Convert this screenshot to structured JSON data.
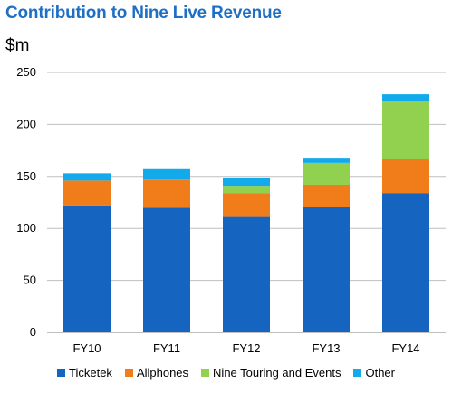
{
  "title": "Contribution to Nine Live Revenue",
  "unit_label": "$m",
  "chart_data": {
    "type": "bar",
    "stacked": true,
    "categories": [
      "FY10",
      "FY11",
      "FY12",
      "FY13",
      "FY14"
    ],
    "series": [
      {
        "name": "Ticketek",
        "color": "#1565C0",
        "values": [
          122,
          120,
          111,
          121,
          134
        ]
      },
      {
        "name": "Allphones",
        "color": "#F07D1A",
        "values": [
          24,
          27,
          23,
          21,
          33
        ]
      },
      {
        "name": "Nine Touring and Events",
        "color": "#92D050",
        "values": [
          0,
          0,
          7,
          21,
          55
        ]
      },
      {
        "name": "Other",
        "color": "#12AAEB",
        "values": [
          7,
          10,
          8,
          5,
          7
        ]
      }
    ],
    "ylim": [
      0,
      250
    ],
    "yticks": [
      0,
      50,
      100,
      150,
      200,
      250
    ],
    "grid": true,
    "legend_position": "bottom"
  }
}
